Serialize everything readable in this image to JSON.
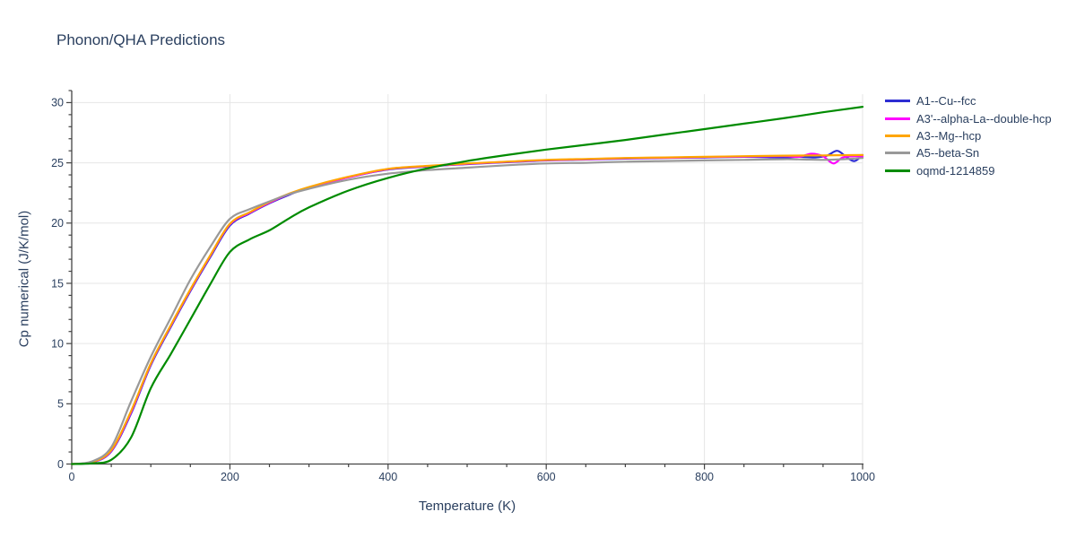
{
  "chart_data": {
    "type": "line",
    "title": "Phonon/QHA Predictions",
    "xlabel": "Temperature (K)",
    "ylabel": "Cp numerical (J/K/mol)",
    "xlim": [
      0,
      1000
    ],
    "ylim": [
      0,
      31
    ],
    "x_major_ticks": [
      0,
      200,
      400,
      600,
      800,
      1000
    ],
    "x_minor_step": 50,
    "y_major_ticks": [
      0,
      5,
      10,
      15,
      20,
      25,
      30
    ],
    "y_minor_step": 1,
    "grid": true,
    "legend_position": "top-right",
    "colors": {
      "text": "#2a3f5f",
      "axis_line": "#444444",
      "gridline": "#e6e6e6",
      "background": "#ffffff"
    },
    "series": [
      {
        "name": "A1--Cu--fcc",
        "color": "#2d2dd2",
        "x": [
          0,
          25,
          50,
          75,
          100,
          125,
          150,
          175,
          200,
          225,
          250,
          275,
          300,
          350,
          400,
          450,
          500,
          550,
          600,
          650,
          700,
          750,
          800,
          850,
          900,
          920,
          940,
          955,
          968,
          980,
          990,
          1000
        ],
        "y": [
          0,
          0.12,
          1.05,
          4.2,
          8.2,
          11.35,
          14.35,
          17.15,
          19.8,
          20.8,
          21.65,
          22.35,
          22.95,
          23.8,
          24.45,
          24.7,
          24.9,
          25.05,
          25.2,
          25.28,
          25.35,
          25.4,
          25.45,
          25.5,
          25.45,
          25.5,
          25.45,
          25.6,
          26.0,
          25.45,
          25.15,
          25.65
        ]
      },
      {
        "name": "A3'--alpha-La--double-hcp",
        "color": "#ff00ff",
        "x": [
          0,
          25,
          50,
          75,
          100,
          125,
          150,
          175,
          200,
          225,
          250,
          275,
          300,
          350,
          400,
          450,
          500,
          550,
          600,
          650,
          700,
          750,
          800,
          850,
          900,
          920,
          935,
          950,
          963,
          975,
          990,
          1000
        ],
        "y": [
          0,
          0.13,
          1.1,
          4.3,
          8.3,
          11.45,
          14.45,
          17.25,
          19.9,
          20.85,
          21.7,
          22.4,
          22.95,
          23.8,
          24.48,
          24.72,
          24.92,
          25.08,
          25.22,
          25.3,
          25.38,
          25.42,
          25.48,
          25.52,
          25.55,
          25.5,
          25.75,
          25.55,
          24.95,
          25.45,
          25.55,
          25.5
        ]
      },
      {
        "name": "A3--Mg--hcp",
        "color": "#ffa500",
        "x": [
          0,
          25,
          50,
          75,
          100,
          125,
          150,
          175,
          200,
          225,
          250,
          275,
          300,
          350,
          400,
          450,
          500,
          550,
          600,
          650,
          700,
          750,
          800,
          850,
          900,
          950,
          1000
        ],
        "y": [
          0,
          0.15,
          1.15,
          4.4,
          8.35,
          11.5,
          14.5,
          17.3,
          19.95,
          20.9,
          21.75,
          22.45,
          23.0,
          23.85,
          24.5,
          24.75,
          24.95,
          25.1,
          25.25,
          25.32,
          25.4,
          25.45,
          25.5,
          25.55,
          25.6,
          25.62,
          25.65
        ]
      },
      {
        "name": "A5--beta-Sn",
        "color": "#999999",
        "x": [
          0,
          25,
          50,
          75,
          100,
          125,
          150,
          175,
          200,
          225,
          250,
          275,
          300,
          350,
          400,
          450,
          500,
          550,
          600,
          650,
          700,
          750,
          800,
          850,
          900,
          925,
          950,
          975,
          1000
        ],
        "y": [
          0,
          0.2,
          1.4,
          5.2,
          8.9,
          12.1,
          15.3,
          18.0,
          20.35,
          21.15,
          21.8,
          22.4,
          22.85,
          23.6,
          24.1,
          24.4,
          24.6,
          24.8,
          24.95,
          25.0,
          25.1,
          25.15,
          25.2,
          25.25,
          25.3,
          25.28,
          25.25,
          25.3,
          25.4
        ]
      },
      {
        "name": "oqmd-1214859",
        "color": "#008b00",
        "x": [
          0,
          25,
          50,
          75,
          100,
          125,
          150,
          175,
          200,
          225,
          250,
          275,
          300,
          350,
          400,
          450,
          500,
          550,
          600,
          650,
          700,
          750,
          800,
          850,
          900,
          950,
          1000
        ],
        "y": [
          0,
          0.05,
          0.35,
          2.2,
          6.3,
          9.1,
          12.0,
          14.9,
          17.6,
          18.65,
          19.4,
          20.4,
          21.3,
          22.7,
          23.75,
          24.55,
          25.15,
          25.65,
          26.1,
          26.5,
          26.9,
          27.35,
          27.8,
          28.25,
          28.7,
          29.2,
          29.65
        ]
      }
    ]
  }
}
